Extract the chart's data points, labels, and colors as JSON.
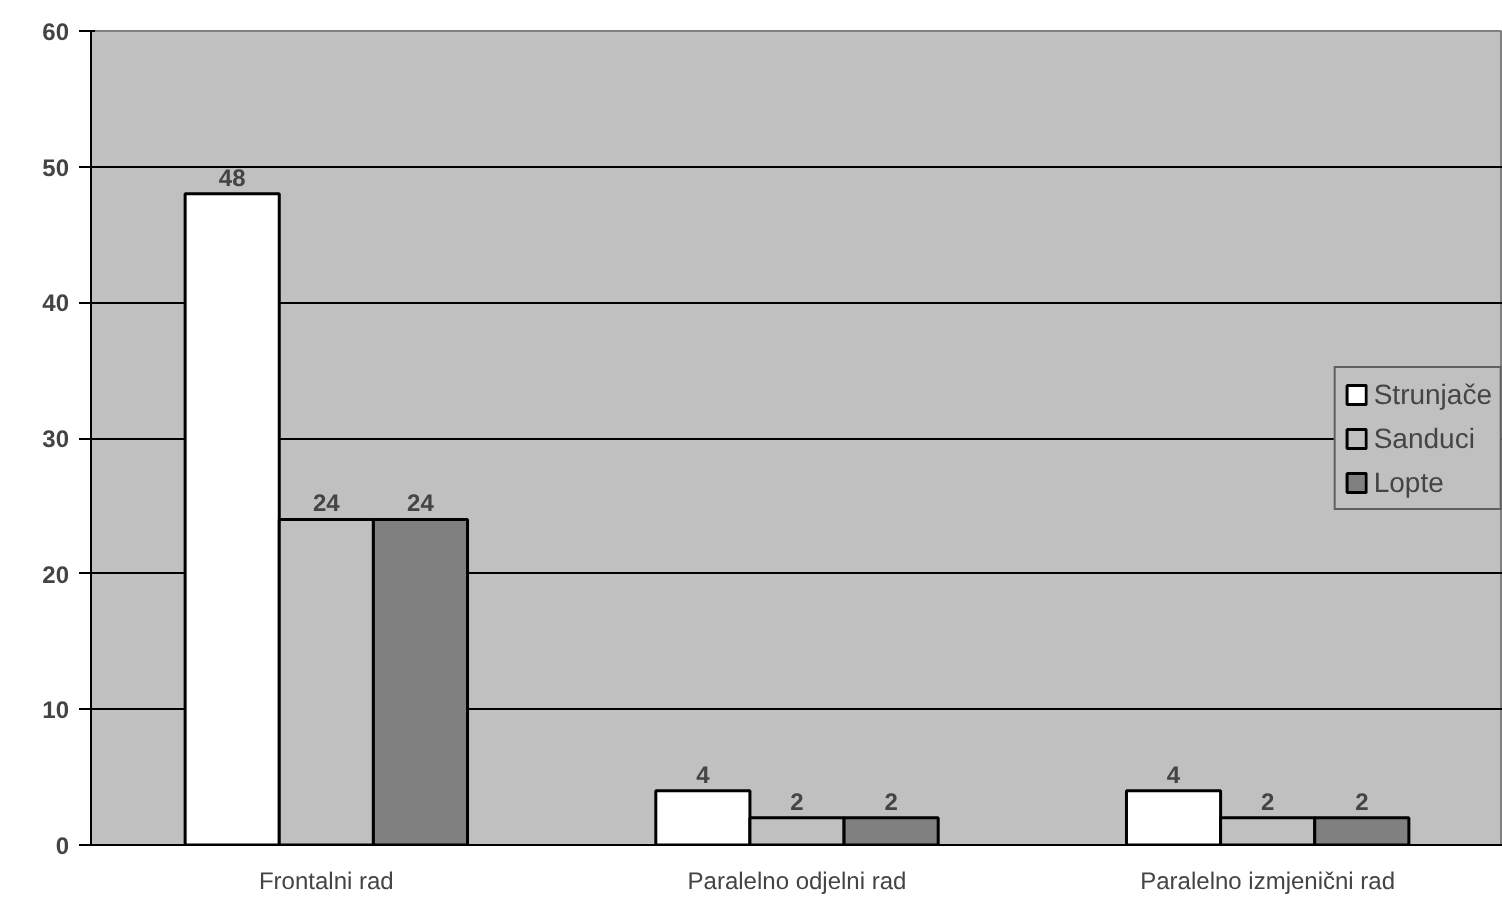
{
  "chart_data": {
    "type": "bar",
    "categories": [
      "Frontalni rad",
      "Paralelno odjelni rad",
      "Paralelno izmjenični rad"
    ],
    "series": [
      {
        "name": "Strunjače",
        "color": "#ffffff",
        "values": [
          48,
          4,
          4
        ]
      },
      {
        "name": "Sanduci",
        "color": "#c0c0c0",
        "values": [
          24,
          2,
          2
        ]
      },
      {
        "name": "Lopte",
        "color": "#808080",
        "values": [
          24,
          2,
          2
        ]
      }
    ],
    "ylim": [
      0,
      60
    ],
    "yticks": [
      0,
      10,
      20,
      30,
      40,
      50,
      60
    ],
    "grid": "y",
    "legend": "right",
    "data_labels": true
  }
}
